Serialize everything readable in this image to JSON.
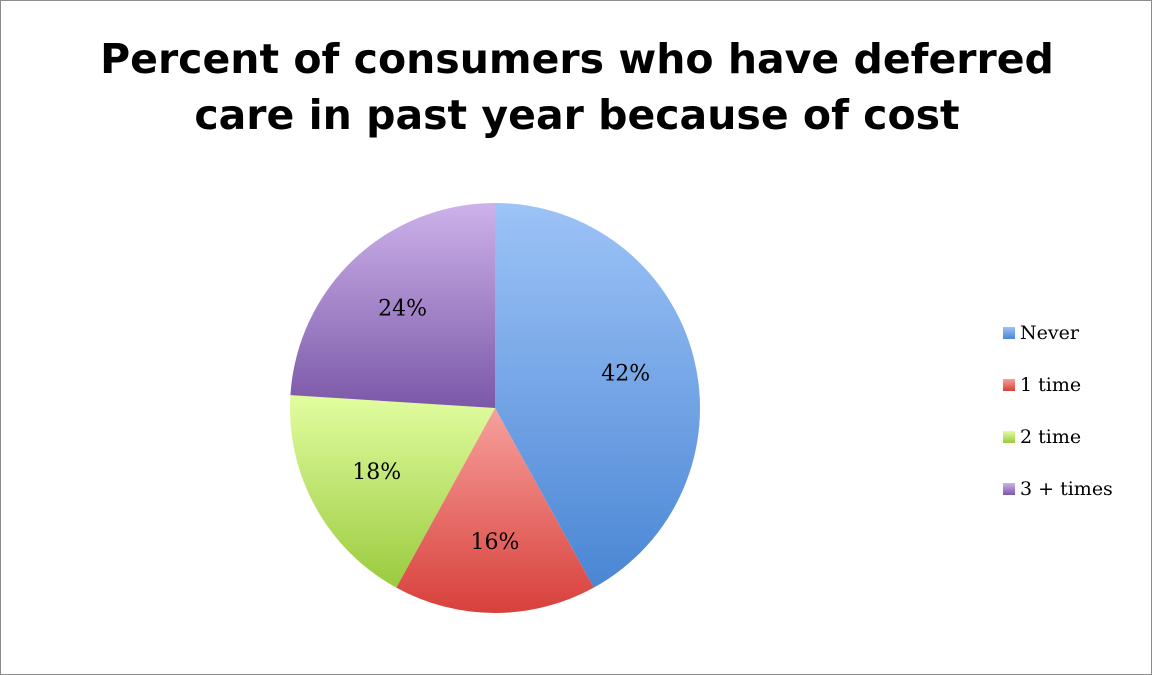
{
  "chart_data": {
    "type": "pie",
    "title": "Percent of consumers who have deferred care in past year because of cost",
    "title_lines": [
      "Percent of consumers who have deferred",
      "care in past year because of cost"
    ],
    "categories": [
      "Never",
      "1 time",
      "2 time",
      "3 + times"
    ],
    "values": [
      42,
      16,
      18,
      24
    ],
    "unit": "%",
    "data_labels": [
      "42%",
      "16%",
      "18%",
      "24%"
    ],
    "colors": [
      {
        "light": "#9dc3f7",
        "dark": "#4a86d4"
      },
      {
        "light": "#f7a09c",
        "dark": "#d8403b"
      },
      {
        "light": "#e2fda0",
        "dark": "#9acb3e"
      },
      {
        "light": "#cdb2ea",
        "dark": "#7b58a8"
      }
    ],
    "legend_position": "right",
    "start": "top (12 o'clock), clockwise"
  },
  "legend": {
    "items": [
      {
        "label": "Never",
        "color": "#4f81bd"
      },
      {
        "label": "1 time",
        "color": "#c0504d"
      },
      {
        "label": "2 time",
        "color": "#9bbb59"
      },
      {
        "label": "3 + times",
        "color": "#8064a2"
      }
    ]
  }
}
